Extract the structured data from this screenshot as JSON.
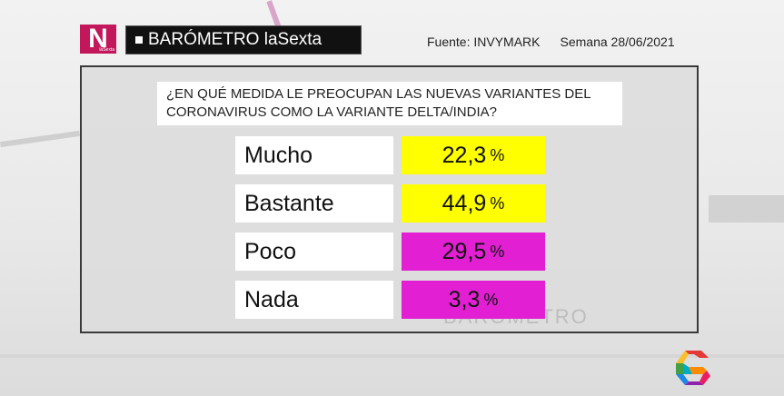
{
  "header": {
    "logo_letter": "N",
    "logo_sub": "laSexta",
    "title": "BARÓMETRO laSexta",
    "source": "Fuente: INVYMARK",
    "week": "Semana 28/06/2021"
  },
  "colors": {
    "yellow": "#ffff00",
    "magenta": "#e21fd2",
    "logo": "#c2185b"
  },
  "chart_data": {
    "type": "table",
    "title": "¿EN QUÉ MEDIDA LE PREOCUPAN LAS NUEVAS VARIANTES DEL CORONAVIRUS COMO LA VARIANTE DELTA/INDIA?",
    "categories": [
      "Mucho",
      "Bastante",
      "Poco",
      "Nada"
    ],
    "values": [
      22.3,
      44.9,
      29.5,
      3.3
    ],
    "value_labels": [
      "22,3",
      "44,9",
      "29,5",
      "3,3"
    ],
    "unit": "%",
    "value_colors": [
      "#ffff00",
      "#ffff00",
      "#e21fd2",
      "#e21fd2"
    ]
  },
  "watermark": "BARÓMETRO"
}
